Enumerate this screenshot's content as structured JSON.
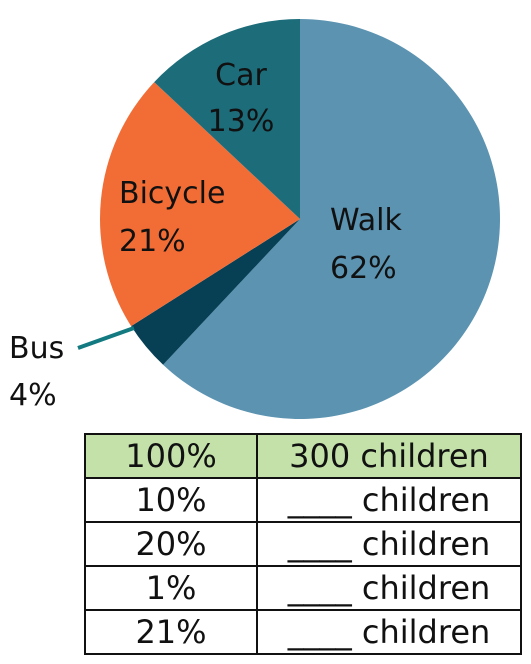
{
  "chart_data": {
    "type": "pie",
    "slices": [
      {
        "label": "Walk",
        "value": 62,
        "value_label": "62%",
        "color": "#5b93b1"
      },
      {
        "label": "Bus",
        "value": 4,
        "value_label": "4%",
        "color": "#073f55"
      },
      {
        "label": "Bicycle",
        "value": 21,
        "value_label": "21%",
        "color": "#f26d36"
      },
      {
        "label": "Car",
        "value": 13,
        "value_label": "13%",
        "color": "#1c6c7a"
      }
    ],
    "bus_leader_color": "#127a80"
  },
  "table": {
    "header_color": "#c3e1a9",
    "rows": [
      {
        "percent": "100%",
        "children": "300 children"
      },
      {
        "percent": "10%",
        "children": "____ children"
      },
      {
        "percent": "20%",
        "children": "____ children"
      },
      {
        "percent": "1%",
        "children": "____ children"
      },
      {
        "percent": "21%",
        "children": "____ children"
      }
    ]
  }
}
